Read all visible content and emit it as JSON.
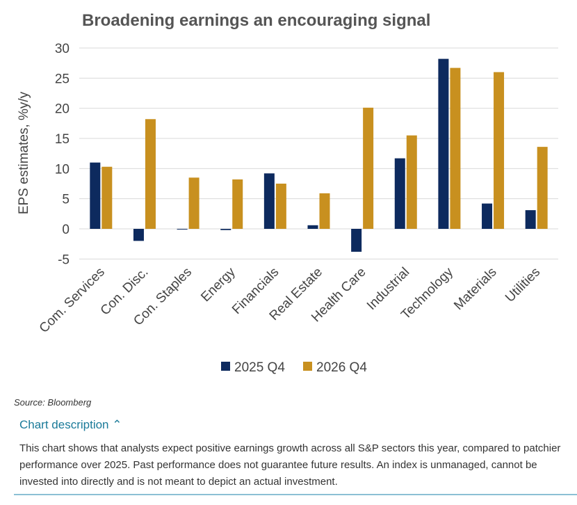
{
  "chart_data": {
    "type": "bar",
    "title": "Broadening earnings an encouraging signal",
    "ylabel": "EPS estimates, %y/y",
    "xlabel": "",
    "ylim": [
      -5,
      30
    ],
    "yticks": [
      30,
      25,
      20,
      15,
      10,
      5,
      0,
      -5
    ],
    "grid": true,
    "legend_position": "bottom",
    "categories": [
      "Com. Services",
      "Con. Disc.",
      "Con. Staples",
      "Energy",
      "Financials",
      "Real Estate",
      "Health Care",
      "Industrial",
      "Technology",
      "Materials",
      "Utilities"
    ],
    "series": [
      {
        "name": "2025 Q4",
        "color": "#0d2a5e",
        "values": [
          11.0,
          -2.0,
          -0.1,
          -0.2,
          9.2,
          0.6,
          -3.8,
          11.7,
          28.2,
          4.2,
          3.1
        ]
      },
      {
        "name": "2026 Q4",
        "color": "#c8901f",
        "values": [
          10.3,
          18.2,
          8.5,
          8.2,
          7.5,
          5.9,
          20.1,
          15.5,
          26.7,
          26.0,
          13.6
        ]
      }
    ]
  },
  "source": "Source: Bloomberg",
  "description_toggle": "Chart description",
  "description": "This chart shows that analysts expect positive earnings growth across all S&P sectors this year, compared to patchier performance over 2025. Past performance does not guarantee future results. An index is unmanaged, cannot be invested into directly and is not meant to depict an actual investment."
}
